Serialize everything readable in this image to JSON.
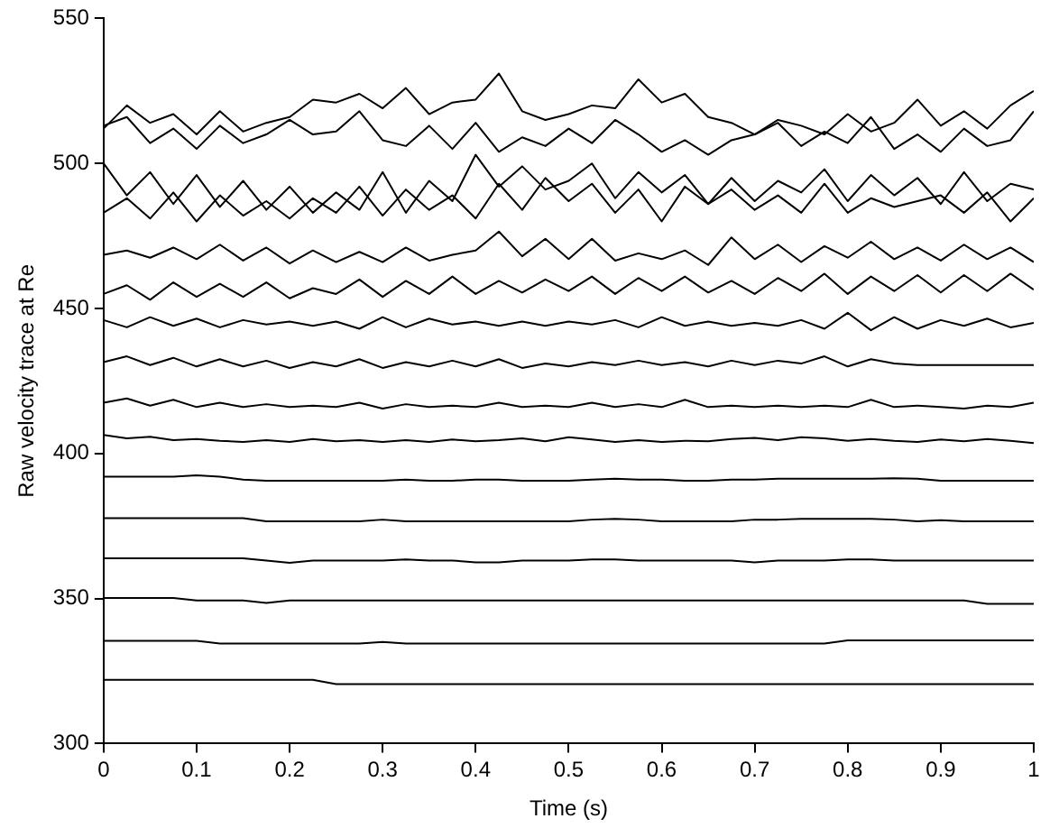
{
  "chart_data": {
    "type": "line",
    "xlabel": "Time (s)",
    "ylabel": "Raw velocity trace at Re",
    "x": [
      0,
      0.025,
      0.05,
      0.075,
      0.1,
      0.125,
      0.15,
      0.175,
      0.2,
      0.225,
      0.25,
      0.275,
      0.3,
      0.325,
      0.35,
      0.375,
      0.4,
      0.425,
      0.45,
      0.475,
      0.5,
      0.525,
      0.55,
      0.575,
      0.6,
      0.625,
      0.65,
      0.675,
      0.7,
      0.725,
      0.75,
      0.775,
      0.8,
      0.825,
      0.85,
      0.875,
      0.9,
      0.925,
      0.95,
      0.975,
      1
    ],
    "xlim": [
      0,
      1
    ],
    "xticks": [
      0,
      0.1,
      0.2,
      0.3,
      0.4,
      0.5,
      0.6,
      0.7,
      0.8,
      0.9,
      1
    ],
    "ylim": [
      300,
      550
    ],
    "yticks": [
      300,
      350,
      400,
      450,
      500,
      550
    ],
    "grid": false,
    "legend": false,
    "marker": "none",
    "line_style": "solid",
    "series": [
      {
        "color": "#000000",
        "values": [
          322,
          322,
          322,
          322,
          322,
          322,
          322,
          322,
          322,
          322,
          320.5,
          320.5,
          320.5,
          320.5,
          320.5,
          320.5,
          320.5,
          320.5,
          320.5,
          320.5,
          320.5,
          320.5,
          320.5,
          320.5,
          320.5,
          320.5,
          320.5,
          320.5,
          320.5,
          320.5,
          320.5,
          320.5,
          320.5,
          320.5,
          320.5,
          320.5,
          320.5,
          320.5,
          320.5,
          320.5,
          320.5
        ]
      },
      {
        "color": "#000000",
        "values": [
          335.4,
          335.4,
          335.4,
          335.4,
          335.4,
          334.5,
          334.5,
          334.5,
          334.5,
          334.5,
          334.5,
          334.5,
          335,
          334.5,
          334.5,
          334.5,
          334.5,
          334.5,
          334.5,
          334.5,
          334.5,
          334.5,
          334.5,
          334.5,
          334.5,
          334.5,
          334.5,
          334.5,
          334.5,
          334.5,
          334.5,
          334.5,
          335.6,
          335.6,
          335.6,
          335.6,
          335.6,
          335.6,
          335.6,
          335.6,
          335.6
        ]
      },
      {
        "color": "#000000",
        "values": [
          350.2,
          350.2,
          350.2,
          350.2,
          349.3,
          349.3,
          349.3,
          348.5,
          349.3,
          349.3,
          349.3,
          349.3,
          349.3,
          349.3,
          349.3,
          349.3,
          349.3,
          349.3,
          349.3,
          349.3,
          349.3,
          349.3,
          349.3,
          349.3,
          349.3,
          349.3,
          349.3,
          349.3,
          349.3,
          349.3,
          349.3,
          349.3,
          349.3,
          349.3,
          349.3,
          349.3,
          349.3,
          349.3,
          348.2,
          348.2,
          348.2
        ]
      },
      {
        "color": "#000000",
        "values": [
          363.9,
          363.9,
          363.9,
          363.9,
          363.9,
          363.9,
          363.9,
          363.1,
          362.3,
          363.1,
          363.1,
          363.1,
          363.1,
          363.5,
          363.1,
          363.1,
          362.5,
          362.5,
          363.1,
          363.1,
          363.1,
          363.5,
          363.5,
          363.1,
          363.1,
          363.1,
          363.1,
          363.1,
          362.5,
          363.1,
          363.1,
          363.1,
          363.5,
          363.5,
          363.1,
          363.1,
          363.1,
          363.1,
          363.1,
          363.1,
          363.1
        ]
      },
      {
        "color": "#000000",
        "values": [
          377.7,
          377.7,
          377.7,
          377.7,
          377.7,
          377.7,
          377.7,
          376.6,
          376.6,
          376.6,
          376.6,
          376.6,
          377.2,
          376.6,
          376.6,
          376.6,
          376.6,
          376.6,
          376.6,
          376.6,
          376.6,
          377.2,
          377.5,
          377.2,
          376.6,
          376.6,
          376.6,
          376.6,
          377.2,
          377.2,
          377.5,
          377.5,
          377.5,
          377.5,
          377.2,
          376.6,
          377.0,
          376.6,
          376.6,
          376.6,
          376.6
        ]
      },
      {
        "color": "#000000",
        "values": [
          392,
          392,
          392,
          392,
          392.5,
          392,
          391,
          390.6,
          390.6,
          390.6,
          390.6,
          390.6,
          390.6,
          391,
          390.6,
          390.6,
          391,
          391,
          390.6,
          390.6,
          390.6,
          391,
          391.3,
          391,
          391,
          390.6,
          390.6,
          391,
          391,
          391.3,
          391.3,
          391.3,
          391.3,
          391.3,
          391.5,
          391.3,
          390.6,
          390.6,
          390.6,
          390.6,
          390.6
        ]
      },
      {
        "color": "#000000",
        "values": [
          406.4,
          405.2,
          405.8,
          404.6,
          405.0,
          404.4,
          404.0,
          404.6,
          404.0,
          405.0,
          404.2,
          404.6,
          404.0,
          404.6,
          404.0,
          404.8,
          404.2,
          404.6,
          405.2,
          404.2,
          405.6,
          404.8,
          404.0,
          404.6,
          404.0,
          404.4,
          404.2,
          405.0,
          405.4,
          404.6,
          405.6,
          405.2,
          404.4,
          405.0,
          404.4,
          404.0,
          404.8,
          404.2,
          405.0,
          404.4,
          403.6
        ]
      },
      {
        "color": "#000000",
        "values": [
          417.5,
          419.0,
          416.5,
          418.5,
          416.0,
          417.5,
          416.0,
          417.0,
          416.0,
          416.5,
          416.0,
          417.5,
          415.5,
          417.0,
          416.0,
          416.5,
          416.0,
          417.5,
          416.0,
          416.5,
          416.0,
          417.5,
          416.0,
          417.0,
          416.0,
          418.5,
          416.0,
          416.5,
          416.0,
          416.5,
          416.0,
          416.5,
          416.0,
          418.5,
          416.0,
          416.5,
          416.0,
          415.5,
          416.5,
          416.0,
          417.5
        ]
      },
      {
        "color": "#000000",
        "values": [
          431.5,
          433.5,
          430.5,
          433.0,
          430.0,
          432.5,
          430.0,
          432.0,
          429.5,
          431.5,
          430.0,
          432.5,
          429.5,
          431.5,
          430.0,
          432.0,
          430.0,
          432.5,
          429.5,
          431.0,
          430.0,
          431.5,
          430.5,
          432.0,
          430.5,
          431.5,
          430.0,
          432.0,
          430.5,
          432.0,
          431.0,
          433.5,
          430.0,
          432.5,
          431.0,
          430.5,
          430.5,
          430.5,
          430.5,
          430.5,
          430.5
        ]
      },
      {
        "color": "#000000",
        "values": [
          446.0,
          443.5,
          447.0,
          444.0,
          446.5,
          443.5,
          446.0,
          444.5,
          445.5,
          444.0,
          445.5,
          443.0,
          447.0,
          443.5,
          446.5,
          444.5,
          445.5,
          444.0,
          445.5,
          444.0,
          445.5,
          444.5,
          446.0,
          443.5,
          447.0,
          444.0,
          445.5,
          444.0,
          445.0,
          444.0,
          446.0,
          443.0,
          448.5,
          442.5,
          447.0,
          443.0,
          446.0,
          444.0,
          446.5,
          443.5,
          445.0
        ]
      },
      {
        "color": "#000000",
        "values": [
          455.0,
          458.0,
          453.0,
          459.0,
          454.0,
          458.5,
          454.0,
          459.0,
          453.5,
          457.0,
          455.0,
          460.0,
          454.0,
          459.5,
          455.0,
          461.0,
          455.0,
          459.5,
          455.5,
          460.0,
          456.0,
          461.0,
          455.0,
          460.5,
          456.0,
          461.0,
          455.5,
          459.5,
          455.0,
          460.5,
          456.0,
          462.0,
          455.0,
          461.0,
          456.0,
          461.5,
          455.5,
          461.5,
          456.0,
          462.0,
          456.5
        ]
      },
      {
        "color": "#000000",
        "values": [
          468.5,
          470.0,
          467.5,
          471.0,
          467.0,
          472.0,
          466.5,
          471.0,
          465.5,
          470.0,
          466.0,
          469.5,
          466.0,
          471.0,
          466.5,
          468.5,
          470.0,
          476.5,
          468.0,
          474.0,
          467.0,
          474.0,
          466.5,
          469.0,
          467.0,
          470.0,
          465.0,
          474.5,
          467.0,
          472.0,
          466.0,
          471.5,
          467.5,
          473.0,
          467.0,
          471.0,
          466.5,
          472.0,
          467.0,
          471.0,
          466.0
        ]
      },
      {
        "color": "#000000",
        "values": [
          483.0,
          488.0,
          481.0,
          490.0,
          480.0,
          489.0,
          482.0,
          487.0,
          481.0,
          488.0,
          483.0,
          492.0,
          482.0,
          491.0,
          484.0,
          489.0,
          481.0,
          493.0,
          484.0,
          495.0,
          487.0,
          493.0,
          483.0,
          491.0,
          480.0,
          492.0,
          486.0,
          491.0,
          484.0,
          489.0,
          483.0,
          493.0,
          483.0,
          488.0,
          485.0,
          487.0,
          489.0,
          483.0,
          490.0,
          480.0,
          488.0
        ]
      },
      {
        "color": "#000000",
        "values": [
          500.0,
          489.0,
          497.0,
          486.0,
          496.0,
          485.0,
          494.0,
          484.0,
          492.0,
          483.0,
          490.0,
          484.0,
          497.0,
          483.0,
          494.0,
          487.0,
          503.0,
          492.0,
          499.0,
          491.0,
          494.0,
          500.0,
          488.0,
          497.0,
          490.0,
          496.0,
          486.0,
          495.0,
          487.0,
          494.0,
          490.0,
          498.0,
          487.0,
          496.0,
          489.0,
          495.0,
          486.0,
          497.0,
          487.0,
          493.0,
          491.0
        ]
      },
      {
        "color": "#000000",
        "values": [
          513.0,
          516.0,
          507.0,
          512.0,
          505.0,
          513.0,
          507.0,
          510.0,
          515.0,
          510.0,
          511.0,
          518.0,
          508.0,
          506.0,
          513.0,
          505.0,
          514.0,
          504.0,
          509.0,
          506.0,
          512.0,
          507.0,
          515.0,
          510.0,
          504.0,
          508.0,
          503.0,
          508.0,
          510.0,
          514.0,
          506.0,
          511.0,
          507.0,
          516.0,
          505.0,
          510.0,
          504.0,
          512.0,
          506.0,
          508.0,
          518.0
        ]
      },
      {
        "color": "#000000",
        "values": [
          512.0,
          520.0,
          514.0,
          517.0,
          510.0,
          518.0,
          511.0,
          514.0,
          516.0,
          522.0,
          521.0,
          524.0,
          519.0,
          526.0,
          517.0,
          521.0,
          522.0,
          531.0,
          518.0,
          515.0,
          517.0,
          520.0,
          519.0,
          529.0,
          521.0,
          524.0,
          516.0,
          514.0,
          510.0,
          515.0,
          513.0,
          510.0,
          517.0,
          511.0,
          514.0,
          522.0,
          513.0,
          518.0,
          512.0,
          520.0,
          525.0
        ]
      }
    ]
  }
}
